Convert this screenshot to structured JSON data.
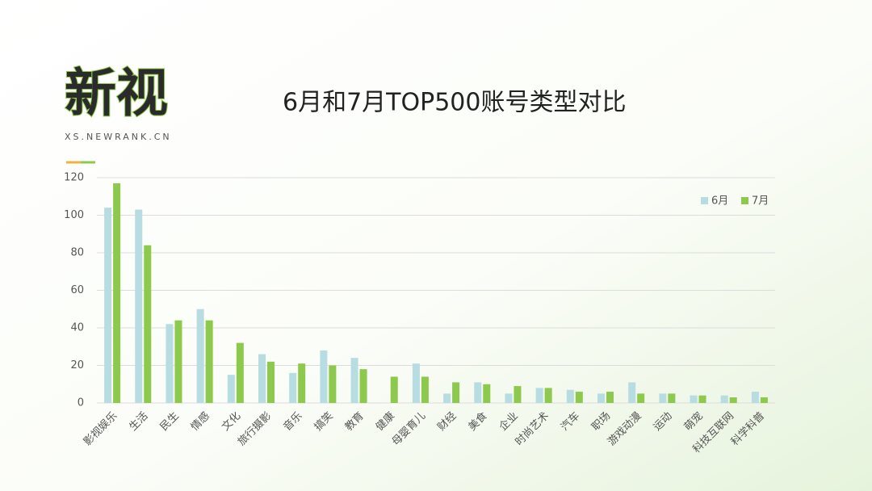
{
  "logo": {
    "title": "新视",
    "subtitle": "XS.NEWRANK.CN"
  },
  "chart_data": {
    "type": "bar",
    "title": "6月和7月TOP500账号类型对比",
    "categories": [
      "影视娱乐",
      "生活",
      "民生",
      "情感",
      "文化",
      "旅行摄影",
      "音乐",
      "搞笑",
      "教育",
      "健康",
      "母婴育儿",
      "财经",
      "美食",
      "企业",
      "时尚艺术",
      "汽车",
      "职场",
      "游戏动漫",
      "运动",
      "萌宠",
      "科技互联网",
      "科学科普"
    ],
    "series": [
      {
        "name": "6月",
        "color": "#b7dce2",
        "values": [
          104,
          103,
          42,
          50,
          15,
          26,
          16,
          28,
          24,
          0,
          21,
          5,
          11,
          5,
          8,
          7,
          5,
          11,
          5,
          4,
          4,
          6
        ]
      },
      {
        "name": "7月",
        "color": "#8dc94c",
        "values": [
          117,
          84,
          44,
          44,
          32,
          22,
          21,
          20,
          18,
          14,
          14,
          11,
          10,
          9,
          8,
          6,
          6,
          5,
          5,
          4,
          3,
          3
        ]
      }
    ],
    "ylim": [
      0,
      120
    ],
    "yticks": [
      0,
      20,
      40,
      60,
      80,
      100,
      120
    ],
    "grid": true,
    "legend": "top-right"
  }
}
